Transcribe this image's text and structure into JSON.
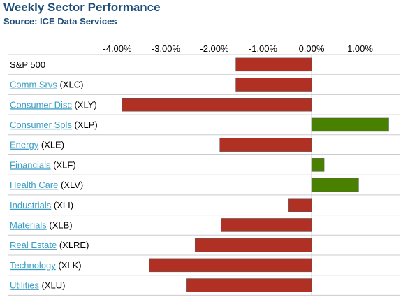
{
  "header": {
    "title": "Weekly Sector Performance",
    "subtitle": "Source: ICE Data Services"
  },
  "colors": {
    "negative": "#b03024",
    "positive": "#4a8000",
    "label_link": "#3a9ec4",
    "title": "#1f4e79",
    "gridline": "#cccccc"
  },
  "chart_data": {
    "type": "bar",
    "orientation": "horizontal",
    "title": "Weekly Sector Performance",
    "subtitle": "Source: ICE Data Services",
    "xlim": [
      -4.0,
      1.5
    ],
    "x_ticks": [
      "-4.00%",
      "-3.00%",
      "-2.00%",
      "-1.00%",
      "0.00%",
      "1.00%"
    ],
    "x_tick_values": [
      -4,
      -3,
      -2,
      -1,
      0,
      1
    ],
    "grid": true,
    "legend": "none",
    "rows": [
      {
        "name": "S&P 500",
        "ticker": "",
        "link": false,
        "value": -1.56
      },
      {
        "name": "Comm Srvs",
        "ticker": "(XLC)",
        "link": true,
        "value": -1.56
      },
      {
        "name": "Consumer Disc",
        "ticker": "(XLY)",
        "link": true,
        "value": -3.9
      },
      {
        "name": "Consumer Spls",
        "ticker": "(XLP)",
        "link": true,
        "value": 1.59
      },
      {
        "name": "Energy",
        "ticker": "(XLE)",
        "link": true,
        "value": -1.89
      },
      {
        "name": "Financials",
        "ticker": "(XLF)",
        "link": true,
        "value": 0.26
      },
      {
        "name": "Health Care",
        "ticker": "(XLV)",
        "link": true,
        "value": 0.97
      },
      {
        "name": "Industrials",
        "ticker": "(XLI)",
        "link": true,
        "value": -0.47
      },
      {
        "name": "Materials",
        "ticker": "(XLB)",
        "link": true,
        "value": -1.86
      },
      {
        "name": "Real Estate",
        "ticker": "(XLRE)",
        "link": true,
        "value": -2.4
      },
      {
        "name": "Technology",
        "ticker": "(XLK)",
        "link": true,
        "value": -3.34
      },
      {
        "name": "Utilities",
        "ticker": "(XLU)",
        "link": true,
        "value": -2.57
      }
    ]
  }
}
